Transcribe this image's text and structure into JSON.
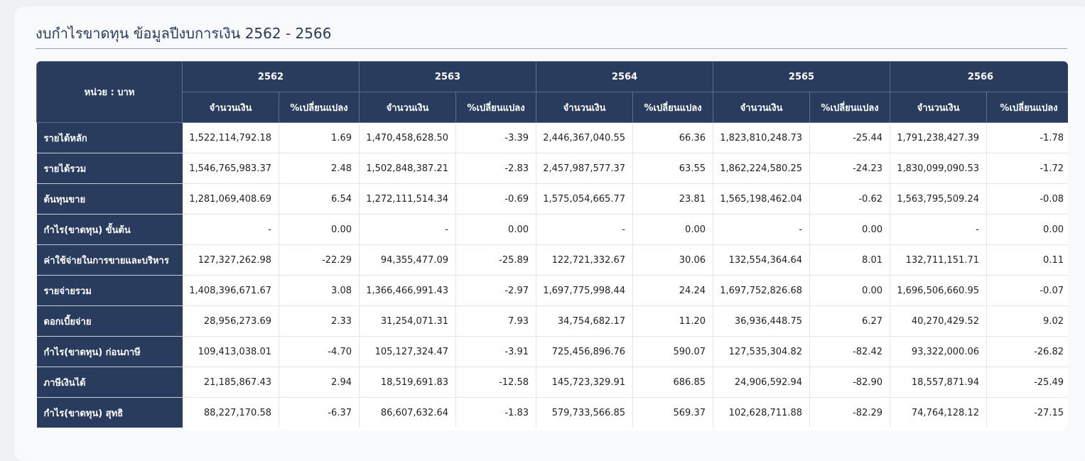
{
  "page": {
    "title": "งบกำไรขาดทุน ข้อมูลปีงบการเงิน 2562 - 2566"
  },
  "colors": {
    "header_bg": "#293c5e",
    "title_text": "#2a3b5c",
    "card_bg": "#f8f9fb"
  },
  "table": {
    "unit_label": "หน่วย : บาท",
    "years": [
      "2562",
      "2563",
      "2564",
      "2565",
      "2566"
    ],
    "sub_headers": [
      "จำนวนเงิน",
      "%เปลี่ยนแปลง"
    ],
    "rows": [
      {
        "label": "รายได้หลัก",
        "cells": [
          "1,522,114,792.18",
          "1.69",
          "1,470,458,628.50",
          "-3.39",
          "2,446,367,040.55",
          "66.36",
          "1,823,810,248.73",
          "-25.44",
          "1,791,238,427.39",
          "-1.78"
        ]
      },
      {
        "label": "รายได้รวม",
        "cells": [
          "1,546,765,983.37",
          "2.48",
          "1,502,848,387.21",
          "-2.83",
          "2,457,987,577.37",
          "63.55",
          "1,862,224,580.25",
          "-24.23",
          "1,830,099,090.53",
          "-1.72"
        ]
      },
      {
        "label": "ต้นทุนขาย",
        "cells": [
          "1,281,069,408.69",
          "6.54",
          "1,272,111,514.34",
          "-0.69",
          "1,575,054,665.77",
          "23.81",
          "1,565,198,462.04",
          "-0.62",
          "1,563,795,509.24",
          "-0.08"
        ]
      },
      {
        "label": "กำไร(ขาดทุน) ขั้นต้น",
        "cells": [
          "-",
          "0.00",
          "-",
          "0.00",
          "-",
          "0.00",
          "-",
          "0.00",
          "-",
          "0.00"
        ]
      },
      {
        "label": "ค่าใช้จ่ายในการขายและบริหาร",
        "cells": [
          "127,327,262.98",
          "-22.29",
          "94,355,477.09",
          "-25.89",
          "122,721,332.67",
          "30.06",
          "132,554,364.64",
          "8.01",
          "132,711,151.71",
          "0.11"
        ]
      },
      {
        "label": "รายจ่ายรวม",
        "cells": [
          "1,408,396,671.67",
          "3.08",
          "1,366,466,991.43",
          "-2.97",
          "1,697,775,998.44",
          "24.24",
          "1,697,752,826.68",
          "0.00",
          "1,696,506,660.95",
          "-0.07"
        ]
      },
      {
        "label": "ดอกเบี้ยจ่าย",
        "cells": [
          "28,956,273.69",
          "2.33",
          "31,254,071.31",
          "7.93",
          "34,754,682.17",
          "11.20",
          "36,936,448.75",
          "6.27",
          "40,270,429.52",
          "9.02"
        ]
      },
      {
        "label": "กำไร(ขาดทุน) ก่อนภาษี",
        "cells": [
          "109,413,038.01",
          "-4.70",
          "105,127,324.47",
          "-3.91",
          "725,456,896.76",
          "590.07",
          "127,535,304.82",
          "-82.42",
          "93,322,000.06",
          "-26.82"
        ]
      },
      {
        "label": "ภาษีเงินได้",
        "cells": [
          "21,185,867.43",
          "2.94",
          "18,519,691.83",
          "-12.58",
          "145,723,329.91",
          "686.85",
          "24,906,592.94",
          "-82.90",
          "18,557,871.94",
          "-25.49"
        ]
      },
      {
        "label": "กำไร(ขาดทุน) สุทธิ",
        "cells": [
          "88,227,170.58",
          "-6.37",
          "86,607,632.64",
          "-1.83",
          "579,733,566.85",
          "569.37",
          "102,628,711.88",
          "-82.29",
          "74,764,128.12",
          "-27.15"
        ]
      }
    ]
  }
}
